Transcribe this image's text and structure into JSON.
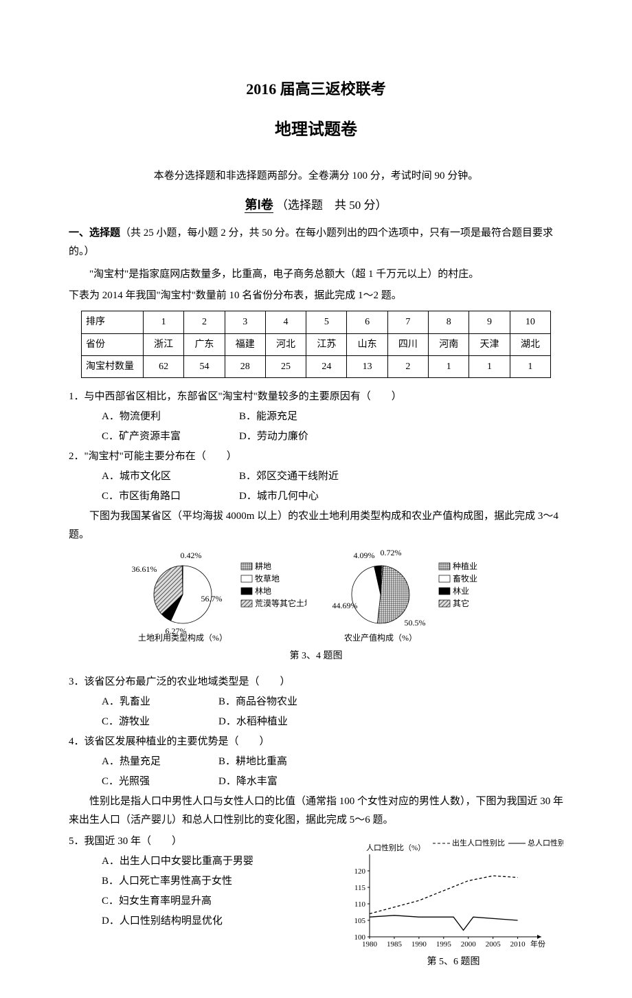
{
  "title": "2016 届高三返校联考",
  "subtitle": "地理试题卷",
  "instructions": "本卷分选择题和非选择题两部分。全卷满分 100 分，考试时间 90 分钟。",
  "section1": {
    "roman": "第Ⅰ卷",
    "suffix": "（选择题　共 50 分）",
    "intro_bold": "一、选择题",
    "intro_rest": "（共 25 小题，每小题 2 分，共 50 分。在每小题列出的四个选项中，只有一项是最符合题目要求的。）"
  },
  "passage1_l1": "\"淘宝村\"是指家庭网店数量多，比重高，电子商务总额大（超 1 千万元以上）的村庄。",
  "passage1_l2": "下表为 2014 年我国\"淘宝村\"数量前 10 名省份分布表，据此完成 1～2 题。",
  "table": {
    "row1_label": "排序",
    "row2_label": "省份",
    "row3_label": "淘宝村数量",
    "cols": [
      {
        "rank": "1",
        "prov": "浙江",
        "count": "62"
      },
      {
        "rank": "2",
        "prov": "广东",
        "count": "54"
      },
      {
        "rank": "3",
        "prov": "福建",
        "count": "28"
      },
      {
        "rank": "4",
        "prov": "河北",
        "count": "25"
      },
      {
        "rank": "5",
        "prov": "江苏",
        "count": "24"
      },
      {
        "rank": "6",
        "prov": "山东",
        "count": "13"
      },
      {
        "rank": "7",
        "prov": "四川",
        "count": "2"
      },
      {
        "rank": "8",
        "prov": "河南",
        "count": "1"
      },
      {
        "rank": "9",
        "prov": "天津",
        "count": "1"
      },
      {
        "rank": "10",
        "prov": "湖北",
        "count": "1"
      }
    ]
  },
  "q1": {
    "text": "1．与中西部省区相比，东部省区\"淘宝村\"数量较多的主要原因有（　　）",
    "a": "A．物流便利",
    "b": "B．能源充足",
    "c": "C．矿产资源丰富",
    "d": "D．劳动力廉价"
  },
  "q2": {
    "text": "2．\"淘宝村\"可能主要分布在（　　）",
    "a": "A．城市文化区",
    "b": "B．郊区交通干线附近",
    "c": "C．市区街角路口",
    "d": "D．城市几何中心"
  },
  "passage2": "下图为我国某省区（平均海拔 4000m 以上）的农业土地利用类型构成和农业产值构成图，据此完成 3～4 题。",
  "chart1": {
    "type": "pie",
    "title": "土地利用类型构成（%）",
    "background_color": "#ffffff",
    "slices": [
      {
        "label": "耕地",
        "value": 0.42,
        "pattern": "grid",
        "color": "#ffffff"
      },
      {
        "label": "牧草地",
        "value": 56.7,
        "pattern": "none",
        "color": "#ffffff"
      },
      {
        "label": "林地",
        "value": 6.27,
        "pattern": "solid",
        "color": "#000000"
      },
      {
        "label": "荒漠等其它土地",
        "value": 36.61,
        "pattern": "diag",
        "color": "#cccccc"
      }
    ],
    "label_fontsize": 12
  },
  "chart2": {
    "type": "pie",
    "title": "农业产值构成（%）",
    "background_color": "#ffffff",
    "slices": [
      {
        "label": "种植业",
        "value": 50.5,
        "pattern": "grid",
        "color": "#ffffff"
      },
      {
        "label": "畜牧业",
        "value": 44.69,
        "pattern": "none",
        "color": "#ffffff"
      },
      {
        "label": "林业",
        "value": 4.09,
        "pattern": "solid",
        "color": "#000000"
      },
      {
        "label": "其它",
        "value": 0.72,
        "pattern": "diag",
        "color": "#cccccc"
      }
    ],
    "label_fontsize": 12
  },
  "chart_caption_34": "第 3、4 题图",
  "q3": {
    "text": "3．该省区分布最广泛的农业地域类型是（　　）",
    "a": "A．乳畜业",
    "b": "B．商品谷物农业",
    "c": "C．游牧业",
    "d": "D．水稻种植业"
  },
  "q4": {
    "text": "4．该省区发展种植业的主要优势是（　　）",
    "a": "A．热量充足",
    "b": "B．耕地比重高",
    "c": "C．光照强",
    "d": "D．降水丰富"
  },
  "passage3": "性别比是指人口中男性人口与女性人口的比值（通常指 100 个女性对应的男性人数），下图为我国近 30 年来出生人口（活产婴儿）和总人口性别比的变化图，据此完成 5～6 题。",
  "q5": {
    "text": "5．我国近 30 年（　　）",
    "a": "A．出生人口中女婴比重高于男婴",
    "b": "B．人口死亡率男性高于女性",
    "c": "C．妇女生育率明显升高",
    "d": "D．人口性别结构明显优化"
  },
  "chart3": {
    "type": "line",
    "ylabel": "人口性别比（%）",
    "xlabel": "年份",
    "legend_birth": "出生人口性别比",
    "legend_total": "总人口性别比",
    "xlim": [
      1980,
      2012
    ],
    "ylim": [
      100,
      125
    ],
    "xtick_step": 5,
    "ytick_step": 5,
    "xticks": [
      "1980",
      "1985",
      "1990",
      "1995",
      "2000",
      "2005",
      "2010"
    ],
    "yticks": [
      "100",
      "105",
      "110",
      "115",
      "120"
    ],
    "series": {
      "birth": {
        "dash": "4,3",
        "color": "#000000",
        "points": [
          {
            "x": 1980,
            "y": 107
          },
          {
            "x": 1985,
            "y": 109
          },
          {
            "x": 1990,
            "y": 111
          },
          {
            "x": 1995,
            "y": 114
          },
          {
            "x": 2000,
            "y": 117
          },
          {
            "x": 2005,
            "y": 118.5
          },
          {
            "x": 2010,
            "y": 118
          }
        ]
      },
      "total": {
        "dash": "none",
        "color": "#000000",
        "points": [
          {
            "x": 1980,
            "y": 106
          },
          {
            "x": 1985,
            "y": 106.5
          },
          {
            "x": 1990,
            "y": 106
          },
          {
            "x": 1997,
            "y": 106
          },
          {
            "x": 1999,
            "y": 102
          },
          {
            "x": 2001,
            "y": 106
          },
          {
            "x": 2010,
            "y": 105
          }
        ]
      }
    },
    "background_color": "#ffffff",
    "axis_color": "#000000",
    "label_fontsize": 11
  },
  "chart_caption_56": "第 5、6 题图"
}
